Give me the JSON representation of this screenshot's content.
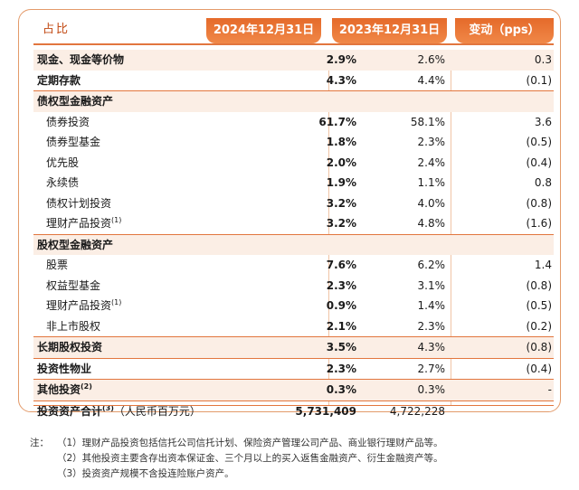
{
  "header": {
    "label": "占比",
    "col_2024": "2024年12月31日",
    "col_2023": "2023年12月31日",
    "col_change": "变动（pps）"
  },
  "rows": [
    {
      "label": "现金、现金等价物",
      "sup": "",
      "v2024": "2.9%",
      "v2023": "2.6%",
      "change": "0.3",
      "style": "bold shaded"
    },
    {
      "label": "定期存款",
      "sup": "",
      "v2024": "4.3%",
      "v2023": "4.4%",
      "change": "(0.1)",
      "style": "bold"
    },
    {
      "label": "债权型金融资产",
      "sup": "",
      "v2024": "",
      "v2023": "",
      "change": "",
      "style": "bold shaded sep"
    },
    {
      "label": "债券投资",
      "sup": "",
      "v2024": "61.7%",
      "v2023": "58.1%",
      "change": "3.6",
      "style": "indent"
    },
    {
      "label": "债券型基金",
      "sup": "",
      "v2024": "1.8%",
      "v2023": "2.3%",
      "change": "(0.5)",
      "style": "indent"
    },
    {
      "label": "优先股",
      "sup": "",
      "v2024": "2.0%",
      "v2023": "2.4%",
      "change": "(0.4)",
      "style": "indent"
    },
    {
      "label": "永续债",
      "sup": "",
      "v2024": "1.9%",
      "v2023": "1.1%",
      "change": "0.8",
      "style": "indent"
    },
    {
      "label": "债权计划投资",
      "sup": "",
      "v2024": "3.2%",
      "v2023": "4.0%",
      "change": "(0.8)",
      "style": "indent"
    },
    {
      "label": "理财产品投资",
      "sup": "(1)",
      "v2024": "3.2%",
      "v2023": "4.8%",
      "change": "(1.6)",
      "style": "indent"
    },
    {
      "label": "股权型金融资产",
      "sup": "",
      "v2024": "",
      "v2023": "",
      "change": "",
      "style": "bold shaded sep"
    },
    {
      "label": "股票",
      "sup": "",
      "v2024": "7.6%",
      "v2023": "6.2%",
      "change": "1.4",
      "style": "indent"
    },
    {
      "label": "权益型基金",
      "sup": "",
      "v2024": "2.3%",
      "v2023": "3.1%",
      "change": "(0.8)",
      "style": "indent"
    },
    {
      "label": "理财产品投资",
      "sup": "(1)",
      "v2024": "0.9%",
      "v2023": "1.4%",
      "change": "(0.5)",
      "style": "indent"
    },
    {
      "label": "非上市股权",
      "sup": "",
      "v2024": "2.1%",
      "v2023": "2.3%",
      "change": "(0.2)",
      "style": "indent"
    },
    {
      "label": "长期股权投资",
      "sup": "",
      "v2024": "3.5%",
      "v2023": "4.3%",
      "change": "(0.8)",
      "style": "bold shaded sep"
    },
    {
      "label": "投资性物业",
      "sup": "",
      "v2024": "2.3%",
      "v2023": "2.7%",
      "change": "(0.4)",
      "style": "bold sep"
    },
    {
      "label": "其他投资",
      "sup": "(2)",
      "v2024": "0.3%",
      "v2023": "0.3%",
      "change": "-",
      "style": "bold shaded sep"
    },
    {
      "label": "投资资产合计",
      "sup": "(3)",
      "suffix": "（人民币百万元）",
      "v2024": "5,731,409",
      "v2023": "4,722,228",
      "change": "",
      "style": "bold sep"
    }
  ],
  "notes": {
    "prefix": "注：",
    "items": [
      "（1）理财产品投资包括信托公司信托计划、保险资产管理公司产品、商业银行理财产品等。",
      "（2）其他投资主要含存出资本保证金、三个月以上的买入返售金融资产、衍生金融资产等。",
      "（3）投资资产规模不含投连险账户资产。"
    ]
  },
  "colors": {
    "accent": "#e56a2a",
    "row_shade": "#fbeee5",
    "rule": "#e2763e"
  }
}
